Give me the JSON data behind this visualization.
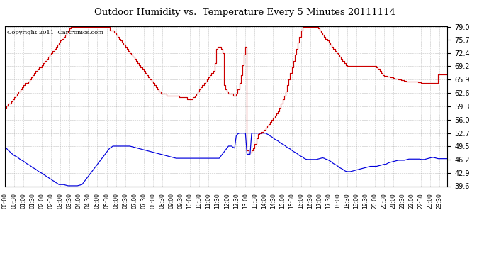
{
  "title": "Outdoor Humidity vs.  Temperature Every 5 Minutes 20111114",
  "copyright": "Copyright 2011  Cartronics.com",
  "background_color": "#ffffff",
  "plot_bg_color": "#ffffff",
  "grid_color": "#aaaaaa",
  "line_color_humidity": "#0000dd",
  "line_color_temp": "#cc0000",
  "ylim": [
    39.6,
    79.0
  ],
  "yticks": [
    39.6,
    42.9,
    46.2,
    49.5,
    52.7,
    56.0,
    59.3,
    62.6,
    65.9,
    69.2,
    72.4,
    75.7,
    79.0
  ],
  "total_points": 288,
  "xtick_step": 6,
  "temp_data": [
    59.0,
    59.5,
    60.0,
    60.0,
    60.5,
    61.0,
    61.5,
    62.0,
    62.5,
    63.0,
    63.5,
    64.0,
    64.5,
    65.0,
    65.0,
    65.5,
    66.0,
    66.5,
    67.0,
    67.5,
    68.0,
    68.5,
    69.0,
    69.0,
    69.5,
    70.0,
    70.5,
    71.0,
    71.5,
    72.0,
    72.5,
    73.0,
    73.5,
    74.0,
    74.5,
    75.0,
    75.5,
    76.0,
    76.5,
    77.0,
    77.5,
    78.0,
    78.5,
    79.0,
    79.0,
    79.0,
    79.0,
    79.0,
    79.0,
    79.0,
    79.0,
    79.0,
    79.0,
    79.0,
    79.0,
    79.0,
    79.0,
    79.0,
    79.0,
    79.0,
    79.0,
    79.0,
    79.0,
    79.0,
    79.0,
    79.0,
    79.0,
    79.0,
    78.0,
    78.0,
    78.0,
    77.5,
    77.0,
    76.5,
    76.0,
    75.5,
    75.0,
    74.5,
    74.0,
    73.5,
    73.0,
    72.5,
    72.0,
    71.5,
    71.0,
    70.5,
    70.0,
    69.5,
    69.0,
    68.5,
    68.0,
    67.5,
    67.0,
    66.5,
    66.0,
    65.5,
    65.0,
    64.5,
    64.0,
    63.5,
    63.0,
    62.5,
    62.5,
    62.5,
    62.5,
    62.0,
    62.0,
    62.0,
    62.0,
    62.0,
    62.0,
    62.0,
    62.0,
    61.5,
    61.5,
    61.5,
    61.5,
    61.5,
    61.0,
    61.0,
    61.0,
    61.0,
    61.5,
    62.0,
    62.5,
    63.0,
    63.5,
    64.0,
    64.5,
    65.0,
    65.5,
    66.0,
    66.5,
    67.0,
    67.5,
    68.0,
    70.0,
    73.5,
    74.0,
    74.0,
    73.5,
    72.5,
    64.5,
    63.5,
    63.0,
    62.5,
    62.5,
    62.5,
    62.0,
    62.0,
    62.5,
    63.5,
    65.0,
    67.0,
    69.5,
    72.0,
    74.0,
    48.5,
    48.0,
    48.0,
    48.5,
    49.0,
    50.0,
    51.5,
    52.5,
    52.7,
    53.0,
    53.0,
    53.5,
    54.0,
    54.5,
    55.0,
    55.5,
    56.0,
    56.5,
    57.0,
    57.5,
    58.0,
    59.0,
    60.0,
    61.0,
    62.0,
    63.0,
    64.5,
    66.0,
    67.5,
    69.0,
    70.5,
    72.0,
    73.5,
    75.0,
    76.5,
    78.0,
    79.0,
    79.0,
    79.0,
    79.0,
    79.0,
    79.0,
    79.0,
    79.0,
    79.0,
    79.0,
    78.5,
    78.0,
    77.5,
    77.0,
    76.5,
    76.0,
    75.5,
    75.0,
    74.5,
    74.0,
    73.5,
    73.0,
    72.5,
    72.0,
    71.5,
    71.0,
    70.5,
    70.0,
    69.5,
    69.2,
    69.2,
    69.2,
    69.2,
    69.2,
    69.2,
    69.2,
    69.2,
    69.2,
    69.2,
    69.2,
    69.2,
    69.2,
    69.2,
    69.2,
    69.2,
    69.2,
    69.2,
    69.2,
    69.0,
    68.5,
    68.0,
    67.5,
    67.0,
    66.9,
    66.8,
    66.7,
    66.6,
    66.5,
    66.4,
    66.3,
    66.2,
    66.1,
    66.0,
    65.9,
    65.8,
    65.7,
    65.6,
    65.5,
    65.5,
    65.5,
    65.5,
    65.5,
    65.5,
    65.5,
    65.4,
    65.3,
    65.2,
    65.1,
    65.0,
    65.0,
    65.0,
    65.0,
    65.0,
    65.0,
    65.0,
    65.0,
    65.0,
    65.0,
    67.2,
    67.2,
    67.2,
    67.2,
    67.2,
    67.2,
    67.2,
    67.2
  ],
  "humidity_data": [
    49.5,
    49.0,
    48.5,
    48.2,
    47.8,
    47.5,
    47.2,
    47.0,
    46.8,
    46.5,
    46.2,
    46.0,
    45.8,
    45.5,
    45.2,
    45.0,
    44.8,
    44.5,
    44.2,
    44.0,
    43.8,
    43.5,
    43.2,
    43.0,
    42.8,
    42.5,
    42.3,
    42.0,
    41.8,
    41.5,
    41.3,
    41.0,
    40.8,
    40.5,
    40.3,
    40.0,
    40.0,
    40.0,
    40.0,
    39.9,
    39.8,
    39.7,
    39.7,
    39.7,
    39.7,
    39.7,
    39.7,
    39.7,
    39.8,
    39.9,
    40.0,
    40.5,
    41.0,
    41.5,
    42.0,
    42.5,
    43.0,
    43.5,
    44.0,
    44.5,
    45.0,
    45.5,
    46.0,
    46.5,
    47.0,
    47.5,
    48.0,
    48.5,
    49.0,
    49.2,
    49.5,
    49.5,
    49.5,
    49.5,
    49.5,
    49.5,
    49.5,
    49.5,
    49.5,
    49.5,
    49.5,
    49.5,
    49.4,
    49.3,
    49.2,
    49.1,
    49.0,
    48.9,
    48.8,
    48.7,
    48.6,
    48.5,
    48.4,
    48.3,
    48.2,
    48.1,
    48.0,
    47.9,
    47.8,
    47.7,
    47.6,
    47.5,
    47.4,
    47.3,
    47.2,
    47.1,
    47.0,
    46.9,
    46.8,
    46.7,
    46.6,
    46.5,
    46.5,
    46.5,
    46.5,
    46.5,
    46.5,
    46.5,
    46.5,
    46.5,
    46.5,
    46.5,
    46.5,
    46.5,
    46.5,
    46.5,
    46.5,
    46.5,
    46.5,
    46.5,
    46.5,
    46.5,
    46.5,
    46.5,
    46.5,
    46.5,
    46.5,
    46.5,
    46.5,
    46.5,
    47.0,
    47.5,
    48.0,
    48.5,
    49.0,
    49.5,
    49.5,
    49.5,
    49.2,
    49.0,
    52.0,
    52.5,
    52.7,
    52.7,
    52.7,
    52.7,
    52.7,
    47.5,
    47.5,
    47.5,
    52.7,
    52.7,
    52.7,
    52.7,
    52.7,
    52.7,
    52.7,
    52.7,
    52.7,
    52.7,
    52.5,
    52.3,
    52.0,
    51.8,
    51.5,
    51.2,
    51.0,
    50.8,
    50.5,
    50.2,
    50.0,
    49.8,
    49.5,
    49.2,
    49.0,
    48.8,
    48.5,
    48.2,
    48.0,
    47.8,
    47.5,
    47.2,
    47.0,
    46.8,
    46.5,
    46.3,
    46.2,
    46.2,
    46.2,
    46.2,
    46.2,
    46.2,
    46.2,
    46.3,
    46.4,
    46.5,
    46.6,
    46.5,
    46.3,
    46.2,
    46.0,
    45.8,
    45.5,
    45.2,
    45.0,
    44.8,
    44.5,
    44.2,
    44.0,
    43.8,
    43.5,
    43.3,
    43.2,
    43.2,
    43.2,
    43.3,
    43.4,
    43.5,
    43.6,
    43.7,
    43.8,
    43.9,
    44.0,
    44.1,
    44.2,
    44.3,
    44.4,
    44.5,
    44.5,
    44.5,
    44.5,
    44.5,
    44.6,
    44.7,
    44.8,
    44.9,
    45.0,
    45.0,
    45.2,
    45.4,
    45.5,
    45.6,
    45.7,
    45.8,
    45.9,
    46.0,
    46.0,
    46.0,
    46.0,
    46.0,
    46.1,
    46.2,
    46.3,
    46.3,
    46.3,
    46.3,
    46.3,
    46.3,
    46.3,
    46.3,
    46.2,
    46.2,
    46.2,
    46.3,
    46.4,
    46.5,
    46.6,
    46.7,
    46.7,
    46.6,
    46.5,
    46.4,
    46.4,
    46.4,
    46.4,
    46.4,
    46.4,
    46.4,
    46.2
  ]
}
